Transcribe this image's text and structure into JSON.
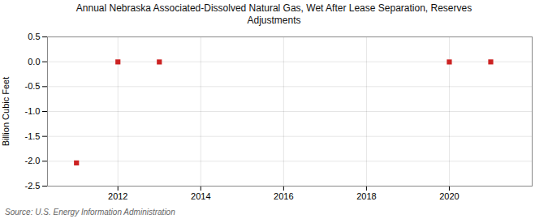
{
  "chart_data": {
    "type": "scatter",
    "title": "Annual Nebraska Associated-Dissolved Natural Gas, Wet After Lease Separation, Reserves\nAdjustments",
    "ylabel": "Billion Cubic Feet",
    "source": "Source: U.S. Energy Information Administration",
    "x": [
      2011,
      2012,
      2013,
      2020,
      2021
    ],
    "values": [
      -2.034,
      -0.003,
      -0.004,
      -0.004,
      -0.003
    ],
    "color": "#cc2222",
    "marker": "square",
    "xlim": [
      2010.3,
      2022.0
    ],
    "ylim": [
      -2.5,
      0.5
    ],
    "xticks": [
      2012,
      2014,
      2016,
      2018,
      2020
    ],
    "yticks": [
      0.5,
      {
        "value": 0,
        "label": "0.0"
      },
      -0.5,
      {
        "value": -1,
        "label": "-1.0"
      },
      -1.5,
      {
        "value": -2,
        "label": "-2.0"
      },
      -2.5
    ],
    "grid": true
  }
}
